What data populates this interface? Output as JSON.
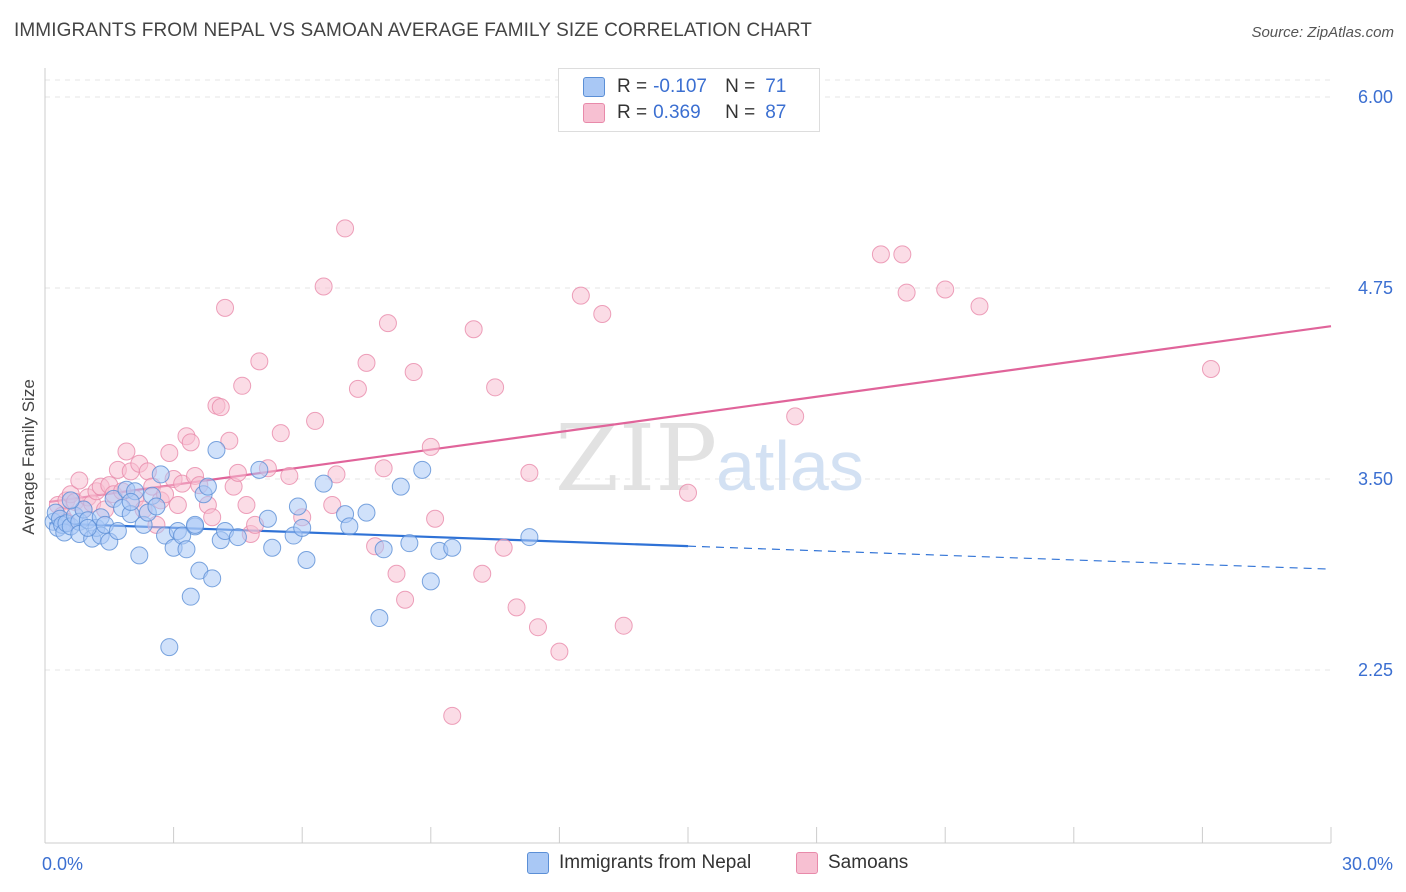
{
  "title": "IMMIGRANTS FROM NEPAL VS SAMOAN AVERAGE FAMILY SIZE CORRELATION CHART",
  "source": "Source: ZipAtlas.com",
  "watermark": {
    "part1": "ZIP",
    "part2": "atlas"
  },
  "legend_top": {
    "rows": [
      {
        "r_label": "R =",
        "r_value": "-0.107",
        "n_label": "N =",
        "n_value": "71"
      },
      {
        "r_label": "R =",
        "r_value": "0.369",
        "n_label": "N =",
        "n_value": "87"
      }
    ]
  },
  "legend_bottom": {
    "items": [
      "Immigrants from Nepal",
      "Samoans"
    ]
  },
  "colors": {
    "blue_fill": "#a9c8f5",
    "blue_stroke": "#5b8fd6",
    "blue_line": "#2f72d6",
    "pink_fill": "#f7c0d2",
    "pink_stroke": "#e88aaa",
    "pink_line": "#e0649a",
    "tick_text": "#3b6fd1",
    "grid": "#e4e4e4"
  },
  "chart_data": {
    "type": "scatter",
    "title": "IMMIGRANTS FROM NEPAL VS SAMOAN AVERAGE FAMILY SIZE CORRELATION CHART",
    "xlabel": "",
    "ylabel": "Average Family Size",
    "xlim": [
      0,
      30
    ],
    "ylim": [
      1.4,
      6.25
    ],
    "x_tick_labels": [
      "0.0%",
      "30.0%"
    ],
    "y_ticks": [
      2.25,
      3.5,
      4.75,
      6.0
    ],
    "y_tick_labels": [
      "2.25",
      "3.50",
      "4.75",
      "6.00"
    ],
    "grid": true,
    "series": [
      {
        "name": "Immigrants from Nepal",
        "color": "blue",
        "trend": {
          "x": [
            0.1,
            15.0,
            30.0
          ],
          "y": [
            3.21,
            3.06,
            2.91
          ],
          "solid_until": 15.0
        },
        "points": [
          [
            0.2,
            3.22
          ],
          [
            0.25,
            3.28
          ],
          [
            0.3,
            3.18
          ],
          [
            0.35,
            3.24
          ],
          [
            0.4,
            3.2
          ],
          [
            0.45,
            3.15
          ],
          [
            0.5,
            3.21
          ],
          [
            0.6,
            3.19
          ],
          [
            0.7,
            3.26
          ],
          [
            0.8,
            3.22
          ],
          [
            0.9,
            3.3
          ],
          [
            0.8,
            3.14
          ],
          [
            1.0,
            3.23
          ],
          [
            1.1,
            3.11
          ],
          [
            1.2,
            3.18
          ],
          [
            1.3,
            3.13
          ],
          [
            1.3,
            3.25
          ],
          [
            1.4,
            3.2
          ],
          [
            1.5,
            3.09
          ],
          [
            1.6,
            3.37
          ],
          [
            1.7,
            3.16
          ],
          [
            1.8,
            3.31
          ],
          [
            1.9,
            3.43
          ],
          [
            2.0,
            3.27
          ],
          [
            2.1,
            3.42
          ],
          [
            2.2,
            3.0
          ],
          [
            2.3,
            3.2
          ],
          [
            2.4,
            3.28
          ],
          [
            2.5,
            3.39
          ],
          [
            2.6,
            3.32
          ],
          [
            2.7,
            3.53
          ],
          [
            2.8,
            3.13
          ],
          [
            2.9,
            2.4
          ],
          [
            3.0,
            3.05
          ],
          [
            3.1,
            3.16
          ],
          [
            3.2,
            3.13
          ],
          [
            3.3,
            3.04
          ],
          [
            3.4,
            2.73
          ],
          [
            3.5,
            3.19
          ],
          [
            3.6,
            2.9
          ],
          [
            3.7,
            3.4
          ],
          [
            3.8,
            3.45
          ],
          [
            3.9,
            2.85
          ],
          [
            4.0,
            3.69
          ],
          [
            4.1,
            3.1
          ],
          [
            4.2,
            3.16
          ],
          [
            3.5,
            3.2
          ],
          [
            5.0,
            3.56
          ],
          [
            5.2,
            3.24
          ],
          [
            5.3,
            3.05
          ],
          [
            5.8,
            3.13
          ],
          [
            5.9,
            3.32
          ],
          [
            6.1,
            2.97
          ],
          [
            6.5,
            3.47
          ],
          [
            7.0,
            3.27
          ],
          [
            7.1,
            3.19
          ],
          [
            7.5,
            3.28
          ],
          [
            7.8,
            2.59
          ],
          [
            7.9,
            3.04
          ],
          [
            8.3,
            3.45
          ],
          [
            8.5,
            3.08
          ],
          [
            8.8,
            3.56
          ],
          [
            9.0,
            2.83
          ],
          [
            9.2,
            3.03
          ],
          [
            9.5,
            3.05
          ],
          [
            11.3,
            3.12
          ],
          [
            0.6,
            3.36
          ],
          [
            1.0,
            3.18
          ],
          [
            2.0,
            3.35
          ],
          [
            4.5,
            3.12
          ],
          [
            6.0,
            3.18
          ]
        ]
      },
      {
        "name": "Samoans",
        "color": "pink",
        "trend": {
          "x": [
            0.1,
            30.0
          ],
          "y": [
            3.35,
            4.5
          ],
          "solid_until": 30.0
        },
        "points": [
          [
            0.3,
            3.33
          ],
          [
            0.4,
            3.26
          ],
          [
            0.5,
            3.36
          ],
          [
            0.6,
            3.4
          ],
          [
            0.7,
            3.35
          ],
          [
            0.8,
            3.49
          ],
          [
            0.9,
            3.3
          ],
          [
            1.0,
            3.38
          ],
          [
            1.1,
            3.34
          ],
          [
            1.2,
            3.42
          ],
          [
            1.3,
            3.45
          ],
          [
            1.4,
            3.3
          ],
          [
            1.5,
            3.46
          ],
          [
            1.6,
            3.4
          ],
          [
            1.7,
            3.56
          ],
          [
            1.8,
            3.42
          ],
          [
            1.9,
            3.68
          ],
          [
            2.0,
            3.55
          ],
          [
            2.1,
            3.37
          ],
          [
            2.2,
            3.6
          ],
          [
            2.3,
            3.3
          ],
          [
            2.4,
            3.55
          ],
          [
            2.5,
            3.45
          ],
          [
            2.6,
            3.2
          ],
          [
            2.7,
            3.36
          ],
          [
            2.8,
            3.4
          ],
          [
            2.9,
            3.67
          ],
          [
            3.0,
            3.5
          ],
          [
            3.1,
            3.33
          ],
          [
            3.2,
            3.47
          ],
          [
            3.3,
            3.78
          ],
          [
            3.4,
            3.74
          ],
          [
            3.5,
            3.52
          ],
          [
            3.6,
            3.46
          ],
          [
            3.8,
            3.33
          ],
          [
            3.9,
            3.25
          ],
          [
            4.0,
            3.98
          ],
          [
            4.1,
            3.97
          ],
          [
            4.2,
            4.62
          ],
          [
            4.3,
            3.75
          ],
          [
            4.4,
            3.45
          ],
          [
            4.5,
            3.54
          ],
          [
            4.6,
            4.11
          ],
          [
            4.7,
            3.33
          ],
          [
            4.8,
            3.14
          ],
          [
            4.9,
            3.2
          ],
          [
            5.0,
            4.27
          ],
          [
            5.2,
            3.57
          ],
          [
            5.5,
            3.8
          ],
          [
            5.7,
            3.52
          ],
          [
            6.0,
            3.25
          ],
          [
            6.3,
            3.88
          ],
          [
            6.5,
            4.76
          ],
          [
            6.7,
            3.33
          ],
          [
            6.8,
            3.53
          ],
          [
            7.0,
            5.14
          ],
          [
            7.3,
            4.09
          ],
          [
            7.5,
            4.26
          ],
          [
            7.7,
            3.06
          ],
          [
            7.9,
            3.57
          ],
          [
            8.0,
            4.52
          ],
          [
            8.2,
            2.88
          ],
          [
            8.4,
            2.71
          ],
          [
            8.6,
            4.2
          ],
          [
            9.0,
            3.71
          ],
          [
            9.1,
            3.24
          ],
          [
            9.5,
            1.95
          ],
          [
            10.0,
            4.48
          ],
          [
            10.2,
            2.88
          ],
          [
            10.5,
            4.1
          ],
          [
            10.7,
            3.05
          ],
          [
            11.0,
            2.66
          ],
          [
            11.3,
            3.54
          ],
          [
            11.5,
            2.53
          ],
          [
            12.0,
            2.37
          ],
          [
            12.5,
            4.7
          ],
          [
            13.0,
            4.58
          ],
          [
            13.5,
            2.54
          ],
          [
            15.0,
            3.41
          ],
          [
            17.5,
            3.91
          ],
          [
            19.5,
            4.97
          ],
          [
            20.0,
            4.97
          ],
          [
            20.1,
            4.72
          ],
          [
            21.0,
            4.74
          ],
          [
            21.8,
            4.63
          ],
          [
            27.2,
            4.22
          ],
          [
            0.5,
            3.22
          ]
        ]
      }
    ]
  }
}
